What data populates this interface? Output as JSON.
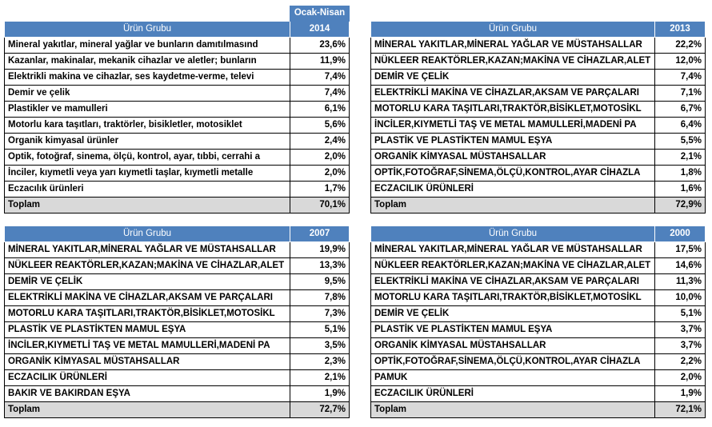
{
  "tables": [
    {
      "period": "Ocak-Nisan",
      "header": [
        "Ürün Grubu",
        "2014"
      ],
      "rows": [
        [
          "Mineral yakıtlar, mineral yağlar ve bunların damıtılmasınd",
          "23,6%"
        ],
        [
          "Kazanlar, makinalar, mekanik cihazlar ve aletler; bunların",
          "11,9%"
        ],
        [
          "Elektrikli makina ve cihazlar, ses kaydetme-verme, televi",
          "7,4%"
        ],
        [
          "Demir ve çelik",
          "7,4%"
        ],
        [
          "Plastikler ve mamulleri",
          "6,1%"
        ],
        [
          "Motorlu kara taşıtları, traktörler, bisikletler, motosiklet",
          "5,6%"
        ],
        [
          "Organik kimyasal ürünler",
          "2,4%"
        ],
        [
          "Optik, fotoğraf, sinema, ölçü, kontrol, ayar, tıbbi, cerrahi a",
          "2,0%"
        ],
        [
          "İnciler, kıymetli veya yarı kıymetli taşlar, kıymetli metalle",
          "2,0%"
        ],
        [
          "Eczacılık ürünleri",
          "1,7%"
        ]
      ],
      "total": [
        "Toplam",
        "70,1%"
      ]
    },
    {
      "header": [
        "Ürün Grubu",
        "2013"
      ],
      "rows": [
        [
          "MİNERAL YAKITLAR,MİNERAL YAĞLAR VE MÜSTAHSALLAR",
          "22,2%"
        ],
        [
          "NÜKLEER REAKTÖRLER,KAZAN;MAKİNA VE CİHAZLAR,ALET",
          "12,0%"
        ],
        [
          "DEMİR VE ÇELİK",
          "7,4%"
        ],
        [
          "ELEKTRİKLİ MAKİNA VE CİHAZLAR,AKSAM VE PARÇALARI",
          "7,1%"
        ],
        [
          "MOTORLU KARA TAŞITLARI,TRAKTÖR,BİSİKLET,MOTOSİKL",
          "6,7%"
        ],
        [
          "İNCİLER,KIYMETLİ TAŞ VE METAL MAMULLERİ,MADENİ PA",
          "6,4%"
        ],
        [
          "PLASTİK VE PLASTİKTEN MAMUL EŞYA",
          "5,5%"
        ],
        [
          "ORGANİK KİMYASAL MÜSTAHSALLAR",
          "2,1%"
        ],
        [
          "OPTİK,FOTOĞRAF,SİNEMA,ÖLÇÜ,KONTROL,AYAR CİHAZLA",
          "1,8%"
        ],
        [
          "ECZACILIK ÜRÜNLERİ",
          "1,6%"
        ]
      ],
      "total": [
        "Toplam",
        "72,9%"
      ]
    },
    {
      "header": [
        "Ürün Grubu",
        "2007"
      ],
      "rows": [
        [
          "MİNERAL YAKITLAR,MİNERAL YAĞLAR VE MÜSTAHSALLAR",
          "19,9%"
        ],
        [
          "NÜKLEER REAKTÖRLER,KAZAN;MAKİNA VE CİHAZLAR,ALET",
          "13,3%"
        ],
        [
          "DEMİR VE ÇELİK",
          "9,5%"
        ],
        [
          "ELEKTRİKLİ MAKİNA VE CİHAZLAR,AKSAM VE PARÇALARI",
          "7,8%"
        ],
        [
          "MOTORLU KARA TAŞITLARI,TRAKTÖR,BİSİKLET,MOTOSİKL",
          "7,3%"
        ],
        [
          "PLASTİK VE PLASTİKTEN MAMUL EŞYA",
          "5,1%"
        ],
        [
          "İNCİLER,KIYMETLİ TAŞ VE METAL MAMULLERİ,MADENİ PA",
          "3,5%"
        ],
        [
          "ORGANİK KİMYASAL MÜSTAHSALLAR",
          "2,3%"
        ],
        [
          "ECZACILIK ÜRÜNLERİ",
          "2,1%"
        ],
        [
          "BAKIR VE BAKIRDAN EŞYA",
          "1,9%"
        ]
      ],
      "total": [
        "Toplam",
        "72,7%"
      ]
    },
    {
      "header": [
        "Ürün Grubu",
        "2000"
      ],
      "rows": [
        [
          "MİNERAL YAKITLAR,MİNERAL YAĞLAR VE MÜSTAHSALLAR",
          "17,5%"
        ],
        [
          "NÜKLEER REAKTÖRLER,KAZAN;MAKİNA VE CİHAZLAR,ALET",
          "14,6%"
        ],
        [
          "ELEKTRİKLİ MAKİNA VE CİHAZLAR,AKSAM VE PARÇALARI",
          "11,3%"
        ],
        [
          "MOTORLU KARA TAŞITLARI,TRAKTÖR,BİSİKLET,MOTOSİKL",
          "10,0%"
        ],
        [
          "DEMİR VE ÇELİK",
          "5,1%"
        ],
        [
          "PLASTİK VE PLASTİKTEN MAMUL EŞYA",
          "3,7%"
        ],
        [
          "ORGANİK KİMYASAL MÜSTAHSALLAR",
          "3,7%"
        ],
        [
          "OPTİK,FOTOĞRAF,SİNEMA,ÖLÇÜ,KONTROL,AYAR CİHAZLA",
          "2,2%"
        ],
        [
          "PAMUK",
          "2,0%"
        ],
        [
          "ECZACILIK ÜRÜNLERİ",
          "1,9%"
        ]
      ],
      "total": [
        "Toplam",
        "72,1%"
      ]
    }
  ]
}
